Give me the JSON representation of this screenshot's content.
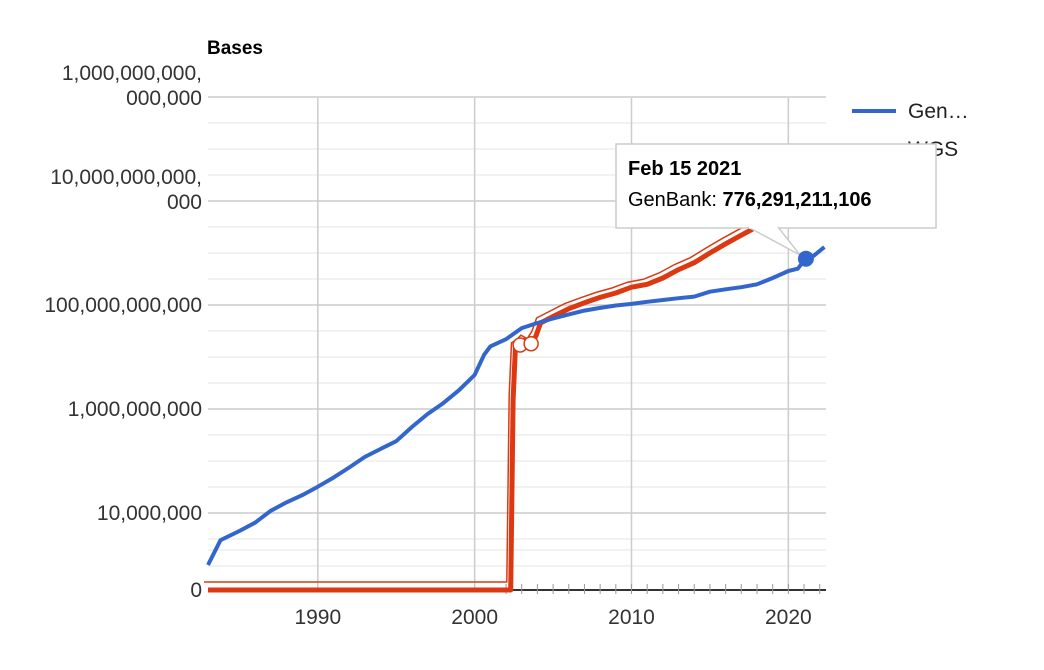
{
  "chart_data": {
    "type": "line",
    "title": "",
    "ylabel": "Bases",
    "xlabel": "",
    "y_scale": "log",
    "y_axis_note": "log-like scale with a zero baseline",
    "y_ticks": [
      {
        "value": 0,
        "label": [
          "0"
        ]
      },
      {
        "value": 10000000,
        "label": [
          "10,000,000"
        ]
      },
      {
        "value": 1000000000,
        "label": [
          "1,000,000,000"
        ]
      },
      {
        "value": 100000000000,
        "label": [
          "100,000,000,000"
        ]
      },
      {
        "value": 10000000000000,
        "label": [
          "10,000,000,000,",
          "000"
        ]
      },
      {
        "value": 1000000000000000,
        "label": [
          "1,000,000,000,",
          "000,000"
        ]
      }
    ],
    "x_ticks": [
      1990,
      2000,
      2010,
      2020
    ],
    "x_range": [
      1983,
      2022.4
    ],
    "grid": true,
    "legend_position": "right",
    "series": [
      {
        "name": "Gen…",
        "full_name": "GenBank",
        "color": "#3366cc",
        "points": [
          [
            1983,
            1000000
          ],
          [
            1983.8,
            3000000
          ],
          [
            1985,
            4500000
          ],
          [
            1986,
            6500000
          ],
          [
            1987,
            11000000
          ],
          [
            1988,
            16000000
          ],
          [
            1989,
            22000000
          ],
          [
            1990,
            32000000
          ],
          [
            1991,
            48000000
          ],
          [
            1992,
            75000000
          ],
          [
            1993,
            120000000
          ],
          [
            1994,
            170000000
          ],
          [
            1995,
            240000000
          ],
          [
            1996,
            450000000
          ],
          [
            1997,
            800000000
          ],
          [
            1998,
            1300000000
          ],
          [
            1999,
            2300000000
          ],
          [
            2000,
            4500000000
          ],
          [
            2000.6,
            11000000000
          ],
          [
            2001,
            16000000000
          ],
          [
            2002,
            22000000000
          ],
          [
            2003,
            36000000000
          ],
          [
            2004,
            45000000000
          ],
          [
            2005,
            55000000000
          ],
          [
            2006,
            66000000000
          ],
          [
            2007,
            78000000000
          ],
          [
            2008,
            88000000000
          ],
          [
            2009,
            98000000000
          ],
          [
            2010,
            105000000000
          ],
          [
            2011,
            115000000000
          ],
          [
            2012,
            125000000000
          ],
          [
            2013,
            135000000000
          ],
          [
            2014,
            145000000000
          ],
          [
            2015,
            180000000000
          ],
          [
            2016,
            200000000000
          ],
          [
            2017,
            220000000000
          ],
          [
            2018,
            250000000000
          ],
          [
            2019,
            330000000000
          ],
          [
            2020,
            450000000000
          ],
          [
            2020.6,
            500000000000
          ],
          [
            2021.1,
            776291211106
          ],
          [
            2021.6,
            880000000000
          ],
          [
            2022.3,
            1300000000000
          ]
        ]
      },
      {
        "name": "WGS",
        "color": "#dc3912",
        "points": [
          [
            1983,
            0
          ],
          [
            2002.3,
            0
          ],
          [
            2002.45,
            1500000000
          ],
          [
            2002.6,
            15000000000
          ],
          [
            2002.9,
            17000000000
          ],
          [
            2003.2,
            21000000000
          ],
          [
            2003.6,
            18000000000
          ],
          [
            2003.9,
            25000000000
          ],
          [
            2004.2,
            45000000000
          ],
          [
            2005,
            60000000000
          ],
          [
            2006,
            85000000000
          ],
          [
            2007,
            110000000000
          ],
          [
            2008,
            140000000000
          ],
          [
            2009,
            170000000000
          ],
          [
            2010,
            220000000000
          ],
          [
            2011,
            250000000000
          ],
          [
            2012,
            330000000000
          ],
          [
            2013,
            480000000000
          ],
          [
            2014,
            650000000000
          ],
          [
            2015,
            1000000000000
          ],
          [
            2016,
            1500000000000
          ],
          [
            2017,
            2200000000000
          ],
          [
            2018,
            3200000000000
          ],
          [
            2019,
            5000000000000
          ]
        ]
      }
    ],
    "tooltip": {
      "date": "Feb 15 2021",
      "series": "GenBank",
      "value_label": "776,291,211,106",
      "x": 2021.12,
      "y": 776291211106
    }
  }
}
